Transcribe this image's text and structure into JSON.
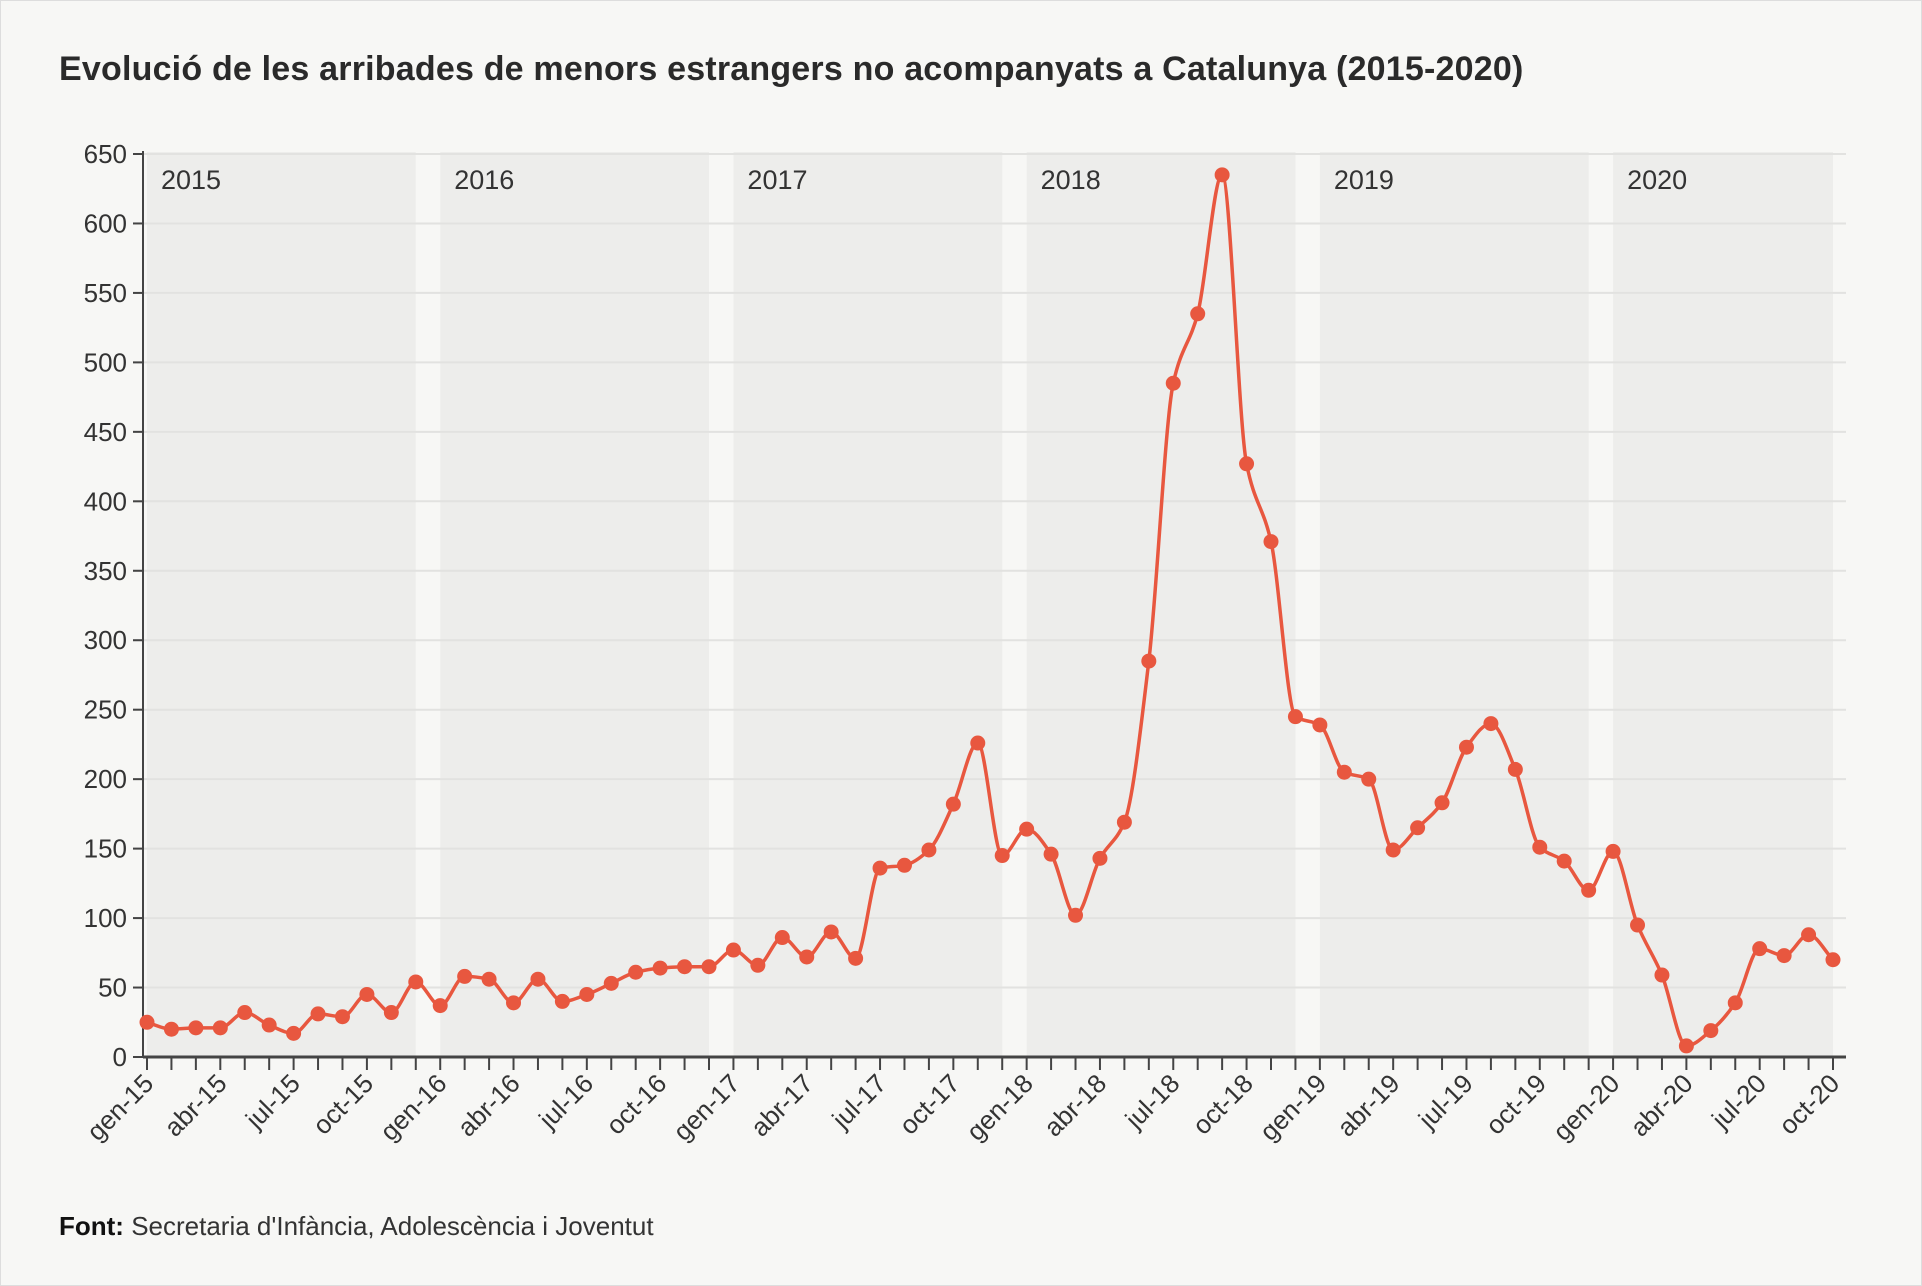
{
  "chart_data": {
    "type": "line",
    "title": "Evolució de les arribades de menors estrangers no acompanyats a Catalunya (2015-2020)",
    "xlabel": "",
    "ylabel": "",
    "ylim": [
      0,
      650
    ],
    "yticks": [
      0,
      50,
      100,
      150,
      200,
      250,
      300,
      350,
      400,
      450,
      500,
      550,
      600,
      650
    ],
    "grid": true,
    "year_bands": [
      "2015",
      "2016",
      "2017",
      "2018",
      "2019",
      "2020"
    ],
    "x": [
      "gen-15",
      "feb-15",
      "mar-15",
      "abr-15",
      "mai-15",
      "jun-15",
      "jul-15",
      "ago-15",
      "set-15",
      "oct-15",
      "nov-15",
      "des-15",
      "gen-16",
      "feb-16",
      "mar-16",
      "abr-16",
      "mai-16",
      "jun-16",
      "jul-16",
      "ago-16",
      "set-16",
      "oct-16",
      "nov-16",
      "des-16",
      "gen-17",
      "feb-17",
      "mar-17",
      "abr-17",
      "mai-17",
      "jun-17",
      "jul-17",
      "ago-17",
      "set-17",
      "oct-17",
      "nov-17",
      "des-17",
      "gen-18",
      "feb-18",
      "mar-18",
      "abr-18",
      "mai-18",
      "jun-18",
      "jul-18",
      "ago-18",
      "set-18",
      "oct-18",
      "nov-18",
      "des-18",
      "gen-19",
      "feb-19",
      "mar-19",
      "abr-19",
      "mai-19",
      "jun-19",
      "jul-19",
      "ago-19",
      "set-19",
      "oct-19",
      "nov-19",
      "des-19",
      "gen-20",
      "feb-20",
      "mar-20",
      "abr-20",
      "mai-20",
      "jun-20",
      "jul-20",
      "ago-20",
      "set-20",
      "oct-20"
    ],
    "xtick_labels": [
      "gen-15",
      "abr-15",
      "jul-15",
      "oct-15",
      "gen-16",
      "abr-16",
      "jul-16",
      "oct-16",
      "gen-17",
      "abr-17",
      "jul-17",
      "oct-17",
      "gen-18",
      "abr-18",
      "jul-18",
      "oct-18",
      "gen-19",
      "abr-19",
      "jul-19",
      "oct-19",
      "gen-20",
      "abr-20",
      "jul-20",
      "oct-20"
    ],
    "series": [
      {
        "values": [
          25,
          20,
          21,
          21,
          32,
          23,
          17,
          31,
          29,
          45,
          32,
          54,
          37,
          58,
          56,
          39,
          56,
          40,
          45,
          53,
          61,
          64,
          65,
          65,
          77,
          66,
          86,
          72,
          90,
          71,
          136,
          138,
          149,
          182,
          226,
          145,
          164,
          146,
          102,
          143,
          169,
          285,
          485,
          535,
          635,
          427,
          371,
          245,
          239,
          205,
          200,
          149,
          165,
          183,
          223,
          240,
          207,
          151,
          141,
          120,
          148,
          95,
          59,
          8,
          19,
          39,
          78,
          73,
          88,
          70
        ],
        "color": "#e8573f"
      }
    ]
  },
  "source": {
    "label": "Font:",
    "text": "Secretaria d'Infància, Adolescència i Joventut"
  }
}
